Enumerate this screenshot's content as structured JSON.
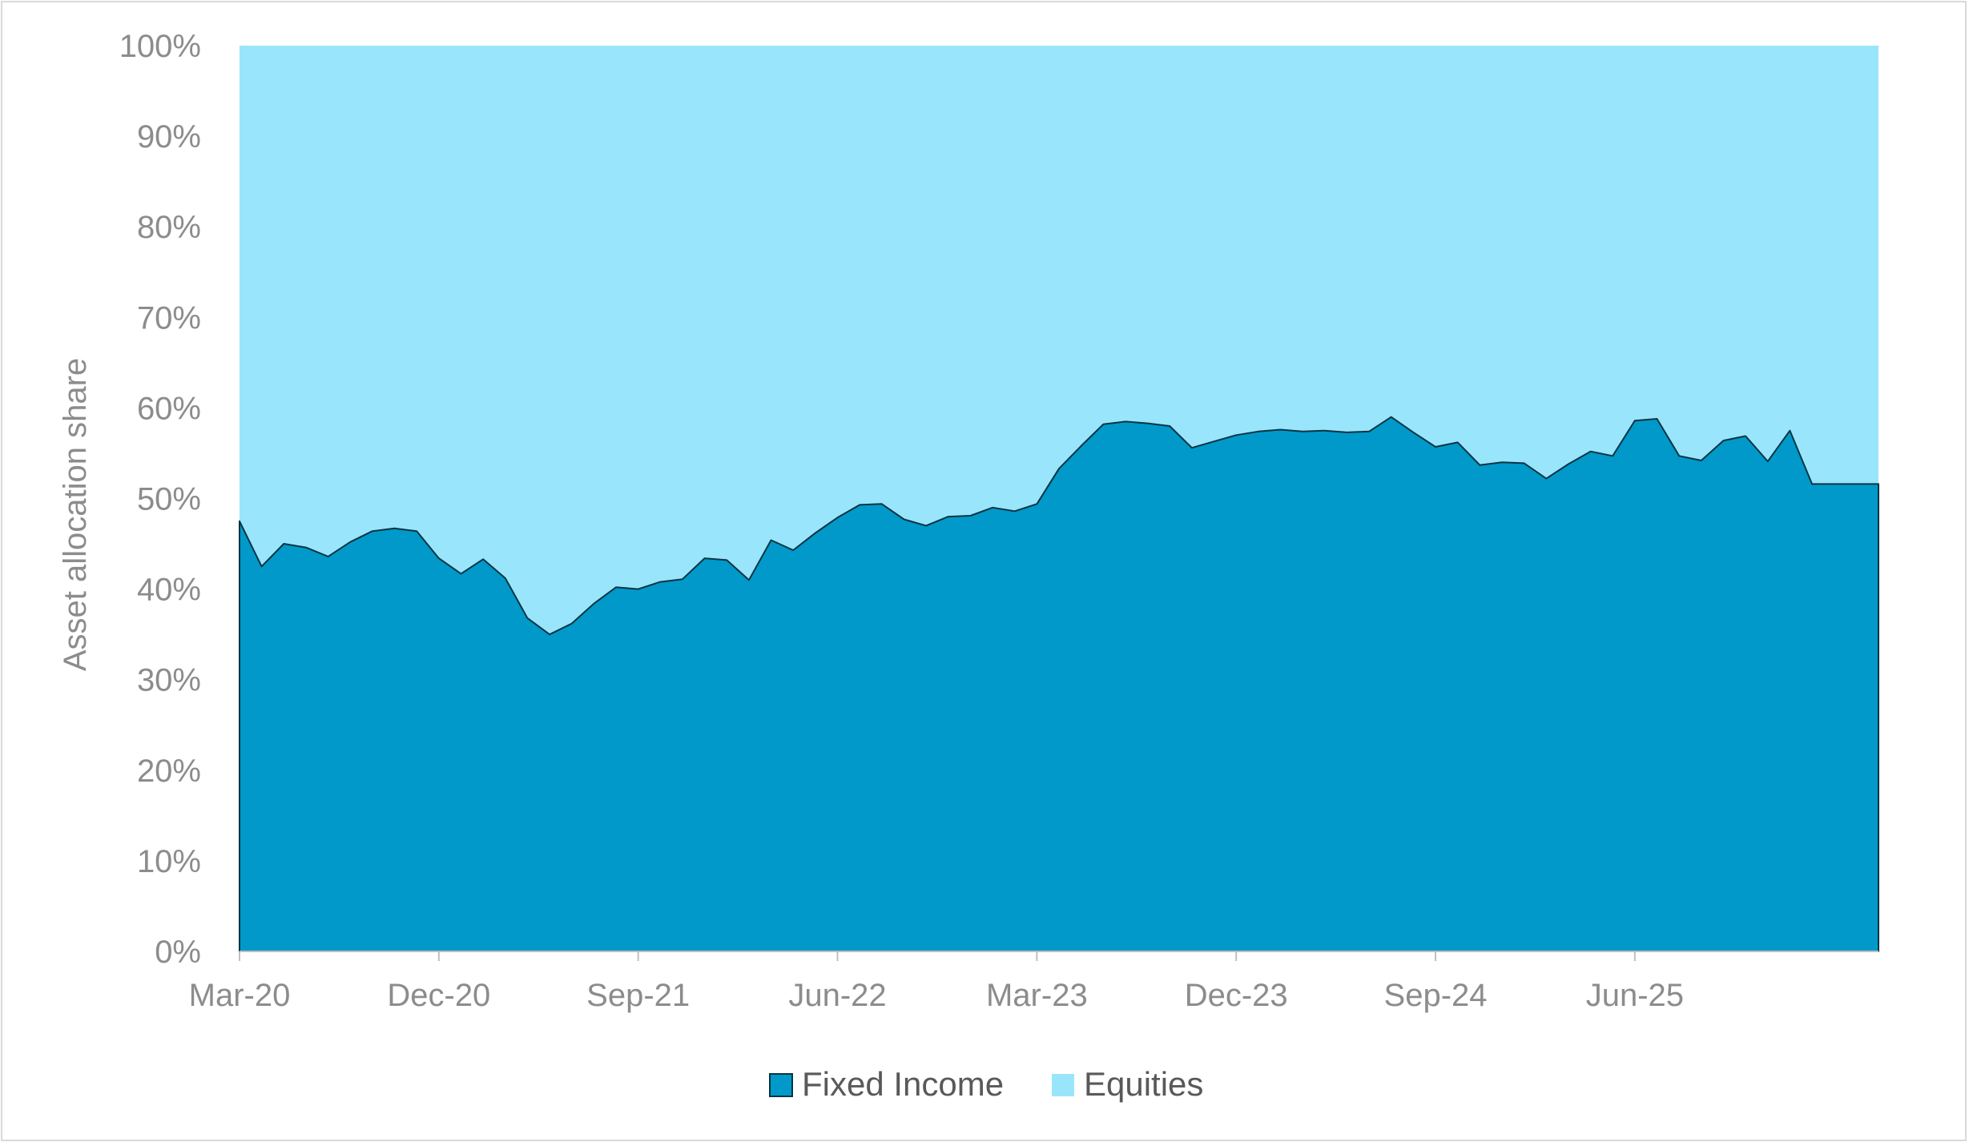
{
  "chart_data": {
    "type": "area",
    "stacked": true,
    "percent_stacked": true,
    "ylabel": "Asset allocation share",
    "xlabel": "",
    "ylim": [
      0,
      100
    ],
    "yticks": [
      "0%",
      "10%",
      "20%",
      "30%",
      "40%",
      "50%",
      "60%",
      "70%",
      "80%",
      "90%",
      "100%"
    ],
    "x_start": "2020-03",
    "x_end": "2026-05",
    "xticks": [
      {
        "date": "2020-03",
        "label": "Mar-20"
      },
      {
        "date": "2020-12",
        "label": "Dec-20"
      },
      {
        "date": "2021-09",
        "label": "Sep-21"
      },
      {
        "date": "2022-06",
        "label": "Jun-22"
      },
      {
        "date": "2023-03",
        "label": "Mar-23"
      },
      {
        "date": "2023-12",
        "label": "Dec-23"
      },
      {
        "date": "2024-09",
        "label": "Sep-24"
      },
      {
        "date": "2025-06",
        "label": "Jun-25"
      }
    ],
    "legend_position": "bottom",
    "grid": false,
    "series": [
      {
        "name": "Fixed Income",
        "color": "#0099c9",
        "x": [
          "2020-03",
          "2020-04",
          "2020-05",
          "2020-06",
          "2020-07",
          "2020-08",
          "2020-09",
          "2020-10",
          "2020-11",
          "2020-12",
          "2021-01",
          "2021-02",
          "2021-03",
          "2021-04",
          "2021-05",
          "2021-06",
          "2021-07",
          "2021-08",
          "2021-09",
          "2021-10",
          "2021-11",
          "2021-12",
          "2022-01",
          "2022-02",
          "2022-03",
          "2022-04",
          "2022-05",
          "2022-06",
          "2022-07",
          "2022-08",
          "2022-09",
          "2022-10",
          "2022-11",
          "2022-12",
          "2023-01",
          "2023-02",
          "2023-03",
          "2023-04",
          "2023-05",
          "2023-06",
          "2023-07",
          "2023-08",
          "2023-09",
          "2023-10",
          "2023-11",
          "2023-12",
          "2024-01",
          "2024-02",
          "2024-03",
          "2024-04",
          "2024-05",
          "2024-06",
          "2024-07",
          "2024-08",
          "2024-09",
          "2024-10",
          "2024-11",
          "2024-12",
          "2025-01",
          "2025-02",
          "2025-03",
          "2025-04",
          "2025-05",
          "2025-06",
          "2025-07",
          "2025-08",
          "2025-09",
          "2025-10",
          "2025-11",
          "2025-12",
          "2026-01",
          "2026-02",
          "2026-03",
          "2026-04",
          "2026-05"
        ],
        "values": [
          47.5,
          42.5,
          45.0,
          44.6,
          43.6,
          45.2,
          46.4,
          46.7,
          46.4,
          43.4,
          41.7,
          43.3,
          41.2,
          36.8,
          35.0,
          36.2,
          38.4,
          40.2,
          40.0,
          40.8,
          41.1,
          43.4,
          43.2,
          41.0,
          45.4,
          44.3,
          46.2,
          47.9,
          49.3,
          49.4,
          47.7,
          47.0,
          48.0,
          48.1,
          49.0,
          48.6,
          49.4,
          53.3,
          55.8,
          58.2,
          58.5,
          58.3,
          58.0,
          55.6,
          56.3,
          57.0,
          57.4,
          57.6,
          57.4,
          57.5,
          57.3,
          57.4,
          59.0,
          57.3,
          55.7,
          56.2,
          53.7,
          54.0,
          53.9,
          52.2,
          53.8,
          55.2,
          54.7,
          58.6,
          58.8,
          54.7,
          54.2,
          56.4,
          56.9,
          54.1,
          57.5,
          51.6,
          51.6,
          51.6,
          51.6
        ]
      },
      {
        "name": "Equities",
        "color": "#99e6fc"
      }
    ]
  }
}
